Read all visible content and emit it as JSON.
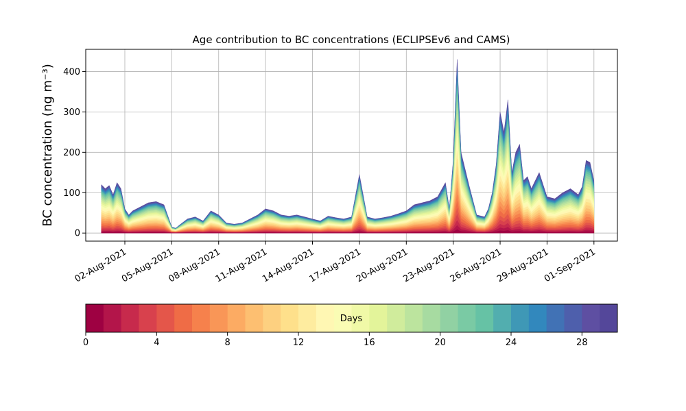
{
  "chart_data": {
    "type": "area",
    "title": "Age contribution to BC concentrations (ECLIPSEv6 and CAMS)",
    "ylabel": "BC concentration (ng m⁻³)",
    "xlabel": "",
    "ylim": [
      -20,
      455
    ],
    "xlim": [
      "2021-07-30T12:00",
      "2021-09-02T12:00"
    ],
    "y_ticks": [
      0,
      100,
      200,
      300,
      400
    ],
    "x_ticks": [
      "02-Aug-2021",
      "05-Aug-2021",
      "08-Aug-2021",
      "11-Aug-2021",
      "14-Aug-2021",
      "17-Aug-2021",
      "20-Aug-2021",
      "23-Aug-2021",
      "26-Aug-2021",
      "29-Aug-2021",
      "01-Sep-2021"
    ],
    "grid": true,
    "stacking": "cumulative by age (days 0 to 30)",
    "total": {
      "dates": [
        "2021-07-31T12:00",
        "2021-07-31T18:00",
        "2021-08-01T00:00",
        "2021-08-01T06:00",
        "2021-08-01T12:00",
        "2021-08-01T18:00",
        "2021-08-02T00:00",
        "2021-08-02T06:00",
        "2021-08-02T12:00",
        "2021-08-03T00:00",
        "2021-08-03T12:00",
        "2021-08-04T00:00",
        "2021-08-04T12:00",
        "2021-08-05T00:00",
        "2021-08-05T06:00",
        "2021-08-05T12:00",
        "2021-08-06T00:00",
        "2021-08-06T12:00",
        "2021-08-07T00:00",
        "2021-08-07T12:00",
        "2021-08-08T00:00",
        "2021-08-08T12:00",
        "2021-08-09T00:00",
        "2021-08-09T12:00",
        "2021-08-10T00:00",
        "2021-08-10T12:00",
        "2021-08-11T00:00",
        "2021-08-11T12:00",
        "2021-08-12T00:00",
        "2021-08-12T12:00",
        "2021-08-13T00:00",
        "2021-08-13T12:00",
        "2021-08-14T00:00",
        "2021-08-14T12:00",
        "2021-08-15T00:00",
        "2021-08-15T12:00",
        "2021-08-16T00:00",
        "2021-08-16T12:00",
        "2021-08-17T00:00",
        "2021-08-17T12:00",
        "2021-08-18T00:00",
        "2021-08-18T12:00",
        "2021-08-19T00:00",
        "2021-08-19T12:00",
        "2021-08-20T00:00",
        "2021-08-20T12:00",
        "2021-08-21T00:00",
        "2021-08-21T12:00",
        "2021-08-22T00:00",
        "2021-08-22T12:00",
        "2021-08-22T18:00",
        "2021-08-23T00:00",
        "2021-08-23T06:00",
        "2021-08-23T12:00",
        "2021-08-24T00:00",
        "2021-08-24T12:00",
        "2021-08-25T00:00",
        "2021-08-25T06:00",
        "2021-08-25T12:00",
        "2021-08-25T18:00",
        "2021-08-26T00:00",
        "2021-08-26T06:00",
        "2021-08-26T12:00",
        "2021-08-26T18:00",
        "2021-08-27T00:00",
        "2021-08-27T06:00",
        "2021-08-27T12:00",
        "2021-08-27T18:00",
        "2021-08-28T00:00",
        "2021-08-28T12:00",
        "2021-08-29T00:00",
        "2021-08-29T12:00",
        "2021-08-30T00:00",
        "2021-08-30T12:00",
        "2021-08-31T00:00",
        "2021-08-31T06:00",
        "2021-08-31T12:00",
        "2021-08-31T18:00",
        "2021-09-01T00:00"
      ],
      "values": [
        120,
        110,
        118,
        95,
        125,
        110,
        60,
        45,
        55,
        65,
        75,
        78,
        70,
        15,
        12,
        20,
        35,
        40,
        30,
        55,
        45,
        25,
        22,
        25,
        35,
        45,
        60,
        55,
        45,
        42,
        45,
        40,
        35,
        30,
        42,
        38,
        35,
        40,
        145,
        40,
        35,
        38,
        42,
        48,
        55,
        70,
        75,
        80,
        90,
        125,
        60,
        180,
        430,
        200,
        120,
        45,
        40,
        60,
        100,
        170,
        300,
        250,
        330,
        150,
        200,
        220,
        130,
        140,
        110,
        150,
        90,
        85,
        100,
        110,
        95,
        115,
        180,
        175,
        130
      ]
    },
    "age_fractions": [
      0.02,
      0.025,
      0.03,
      0.035,
      0.035,
      0.04,
      0.04,
      0.04,
      0.04,
      0.04,
      0.045,
      0.045,
      0.045,
      0.045,
      0.045,
      0.045,
      0.04,
      0.04,
      0.04,
      0.035,
      0.035,
      0.03,
      0.03,
      0.025,
      0.025,
      0.025,
      0.02,
      0.02,
      0.02,
      0.02
    ],
    "colorbar": {
      "label": "Days",
      "ticks": [
        0,
        4,
        8,
        12,
        16,
        20,
        24,
        28
      ],
      "range": [
        0,
        30
      ],
      "bins": 30,
      "colormap": "Spectral",
      "colors": [
        "#9e0142",
        "#b3154a",
        "#c72a4c",
        "#d8414d",
        "#e4564a",
        "#ef6c46",
        "#f6814c",
        "#f99657",
        "#fcab63",
        "#fdbf71",
        "#fdd080",
        "#fee08b",
        "#feec9f",
        "#fff7b3",
        "#fafcb4",
        "#f0f9a7",
        "#e3f49a",
        "#d0ec9c",
        "#bce49e",
        "#a7dba1",
        "#91d1a3",
        "#7acaa4",
        "#66c2a5",
        "#52aeaf",
        "#3f98b6",
        "#3288bd",
        "#4172b5",
        "#4e5fac",
        "#5e4fa2",
        "#54479a"
      ]
    }
  }
}
